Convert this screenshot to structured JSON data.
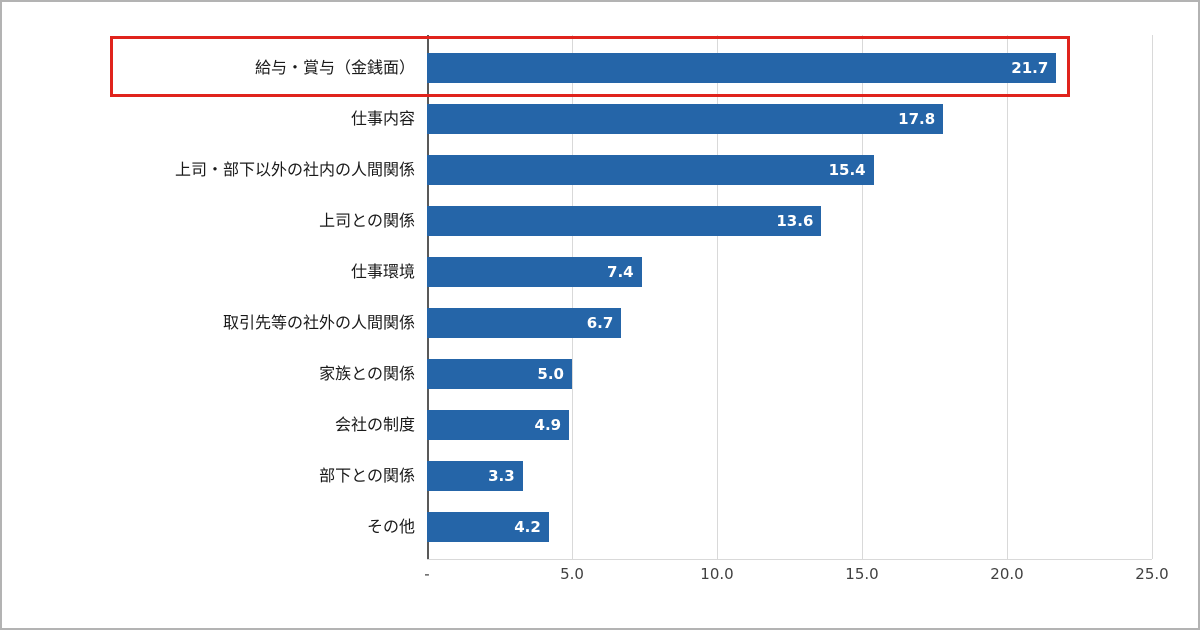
{
  "chart_data": {
    "type": "bar",
    "orientation": "horizontal",
    "title": "",
    "xlabel": "",
    "ylabel": "",
    "categories": [
      "給与・賞与（金銭面）",
      "仕事内容",
      "上司・部下以外の社内の人間関係",
      "上司との関係",
      "仕事環境",
      "取引先等の社外の人間関係",
      "家族との関係",
      "会社の制度",
      "部下との関係",
      "その他"
    ],
    "values": [
      21.7,
      17.8,
      15.4,
      13.6,
      7.4,
      6.7,
      5.0,
      4.9,
      3.3,
      4.2
    ],
    "value_labels": [
      "21.7",
      "17.8",
      "15.4",
      "13.6",
      "7.4",
      "6.7",
      "5.0",
      "4.9",
      "3.3",
      "4.2"
    ],
    "xlim": [
      0,
      25
    ],
    "x_ticks": [
      {
        "value": 0,
        "label": "-"
      },
      {
        "value": 5,
        "label": "5.0"
      },
      {
        "value": 10,
        "label": "10.0"
      },
      {
        "value": 15,
        "label": "15.0"
      },
      {
        "value": 20,
        "label": "20.0"
      },
      {
        "value": 25,
        "label": "25.0"
      }
    ],
    "grid": "vertical",
    "legend": "none",
    "bar_color": "#2565a8",
    "gridline_color": "#d9d9d9",
    "highlight_border_color": "#e0231c",
    "highlight_index": 0,
    "highlighted_category": "給与・賞与（金銭面）"
  }
}
